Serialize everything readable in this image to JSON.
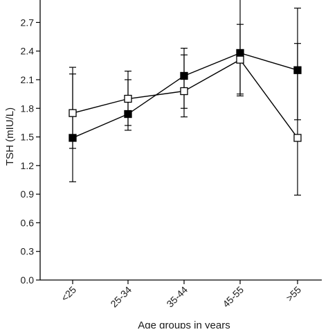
{
  "chart_data": {
    "type": "line",
    "title": "",
    "xlabel": "Age groups in years",
    "ylabel": "TSH (mIU/L)",
    "categories": [
      "<25",
      "25-34",
      "35-44",
      "45-55",
      ">55"
    ],
    "ylim": [
      0,
      2.95
    ],
    "yticks": [
      0.0,
      0.3,
      0.6,
      0.9,
      1.2,
      1.5,
      1.8,
      2.1,
      2.4,
      2.7
    ],
    "ytick_labels": [
      "0.0",
      "0.3",
      "0.6",
      "0.9",
      "1.2",
      "1.5",
      "1.8",
      "2.1",
      "2.4",
      "2.7"
    ],
    "grid": false,
    "series": [
      {
        "marker": "filled-square",
        "color": "#000000",
        "values": [
          1.49,
          1.74,
          2.14,
          2.38,
          2.2
        ],
        "error_upper": [
          2.16,
          2.19,
          2.43,
          3.05,
          2.85
        ],
        "error_lower": [
          1.03,
          1.57,
          1.71,
          1.95,
          1.68
        ]
      },
      {
        "marker": "open-square",
        "color": "#000000",
        "values": [
          1.75,
          1.9,
          1.98,
          2.31,
          1.49
        ],
        "error_upper": [
          2.23,
          2.1,
          2.36,
          2.68,
          2.48
        ],
        "error_lower": [
          1.38,
          1.62,
          1.8,
          1.93,
          0.89
        ]
      }
    ]
  }
}
